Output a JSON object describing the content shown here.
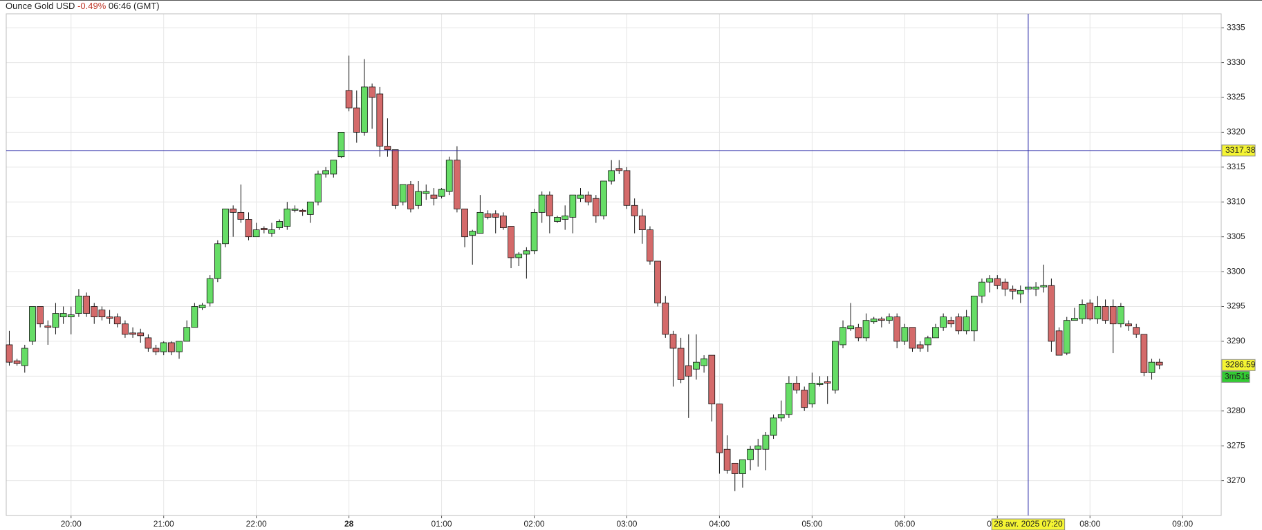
{
  "chart_data": {
    "type": "candlestick",
    "title": "Ounce Gold USD",
    "change": "-0.49%",
    "time": "06:46 (GMT)",
    "x": [
      "19:20",
      "19:25",
      "19:30",
      "19:35",
      "19:40",
      "19:45",
      "19:50",
      "19:55",
      "20:00",
      "20:05",
      "20:10",
      "20:15",
      "20:20",
      "20:25",
      "20:30",
      "20:35",
      "20:40",
      "20:45",
      "20:50",
      "20:55",
      "21:00",
      "21:05",
      "21:10",
      "21:15",
      "21:20",
      "21:25",
      "21:30",
      "21:35",
      "21:40",
      "21:45",
      "21:50",
      "21:55",
      "22:00",
      "22:05",
      "22:10",
      "22:15",
      "22:20",
      "22:25",
      "22:30",
      "22:35",
      "22:40",
      "22:45",
      "22:50",
      "22:55",
      "00:00",
      "00:05",
      "00:10",
      "00:15",
      "00:20",
      "00:25",
      "00:30",
      "00:35",
      "00:40",
      "00:45",
      "00:50",
      "00:55",
      "01:00",
      "01:05",
      "01:10",
      "01:15",
      "01:20",
      "01:25",
      "01:30",
      "01:35",
      "01:40",
      "01:45",
      "01:50",
      "01:55",
      "02:00",
      "02:05",
      "02:10",
      "02:15",
      "02:20",
      "02:25",
      "02:30",
      "02:35",
      "02:40",
      "02:45",
      "02:50",
      "02:55",
      "03:00",
      "03:05",
      "03:10",
      "03:15",
      "03:20",
      "03:25",
      "03:30",
      "03:35",
      "03:40",
      "03:45",
      "03:50",
      "03:55",
      "04:00",
      "04:05",
      "04:10",
      "04:15",
      "04:20",
      "04:25",
      "04:30",
      "04:35",
      "04:40",
      "04:45",
      "04:50",
      "04:55",
      "05:00",
      "05:05",
      "05:10",
      "05:15",
      "05:20",
      "05:25",
      "05:30",
      "05:35",
      "05:40",
      "05:45",
      "05:50",
      "05:55",
      "06:00",
      "06:05",
      "06:10",
      "06:15",
      "06:20",
      "06:25",
      "06:30",
      "06:35",
      "06:40",
      "06:45",
      "06:50",
      "06:55",
      "07:00",
      "07:05",
      "07:10",
      "07:15",
      "07:20",
      "07:25",
      "07:30",
      "07:35",
      "07:40",
      "07:45",
      "07:50",
      "07:55",
      "08:00",
      "08:05",
      "08:10",
      "08:15",
      "08:20",
      "08:25",
      "08:30",
      "08:35",
      "08:40",
      "08:45"
    ],
    "open": [
      3289.5,
      3287.2,
      3286.5,
      3290,
      3295,
      3292.2,
      3292,
      3293.5,
      3293.5,
      3294,
      3296.5,
      3295,
      3294.5,
      3293.5,
      3293.5,
      3292.5,
      3291.2,
      3291.2,
      3290.5,
      3289,
      3288.5,
      3289.8,
      3288.5,
      3290,
      3292,
      3294.8,
      3295.5,
      3299,
      3304,
      3309,
      3308.5,
      3307.5,
      3305,
      3306.2,
      3305.5,
      3306.3,
      3306.5,
      3308.8,
      3308.8,
      3308.2,
      3310,
      3314,
      3314,
      3316.5,
      3326,
      3323.5,
      3320,
      3326.5,
      3325.5,
      3318,
      3317.5,
      3310,
      3312.5,
      3309.5,
      3311.2,
      3311,
      3310.8,
      3311.5,
      3316,
      3309,
      3305.2,
      3305.5,
      3308.3,
      3308.3,
      3308,
      3306.5,
      3302,
      3302.5,
      3303,
      3308.5,
      3311,
      3307.2,
      3307.5,
      3307.8,
      3310.5,
      3311,
      3310.5,
      3308,
      3313,
      3314.8,
      3314.5,
      3309.5,
      3308,
      3306,
      3301.5,
      3295.5,
      3291,
      3289,
      3286.5,
      3286,
      3286.5,
      3288,
      3281,
      3274.5,
      3272.5,
      3271,
      3273,
      3274.5,
      3274.5,
      3276.5,
      3279,
      3279.5,
      3284,
      3283,
      3281,
      3283.8,
      3284.2,
      3283,
      3289.5,
      3291.8,
      3292,
      3290.5,
      3292.8,
      3293.2,
      3293,
      3293.5,
      3290,
      3292,
      3289.5,
      3289.5,
      3290.5,
      3292,
      3293,
      3293.5,
      3291.5,
      3291.5,
      3296.5,
      3298.5,
      3299,
      3298.5,
      3297.5,
      3296.8,
      3297.5,
      3297.5,
      3297.8,
      3298,
      3291.5,
      3288.3,
      3293,
      3293.2,
      3295.5,
      3293.2,
      3295,
      3295,
      3292.5,
      3292.5,
      3292,
      3291,
      3285.5,
      3287
    ],
    "high": [
      3291.5,
      3287.5,
      3289.5,
      3295,
      3295,
      3293,
      3295.5,
      3295,
      3295,
      3297.5,
      3297,
      3295.5,
      3295,
      3294.5,
      3294,
      3293,
      3292,
      3291.8,
      3291,
      3289.5,
      3290,
      3290,
      3290,
      3293,
      3295.5,
      3295.5,
      3299.5,
      3304.5,
      3309,
      3309.5,
      3312.5,
      3308.5,
      3307,
      3306.5,
      3307,
      3307.5,
      3310,
      3309.5,
      3309,
      3310,
      3314.5,
      3315,
      3316,
      3320,
      3331,
      3326,
      3330.5,
      3327,
      3326.5,
      3322,
      3317.5,
      3312.5,
      3313,
      3313,
      3312.5,
      3312,
      3312,
      3316.5,
      3318,
      3309,
      3306,
      3311,
      3308.8,
      3308.8,
      3308.5,
      3306.5,
      3302.8,
      3303.5,
      3309,
      3311.5,
      3311.5,
      3308,
      3309.5,
      3311,
      3312,
      3311.5,
      3311,
      3313,
      3316,
      3316,
      3315,
      3310.5,
      3309,
      3306.5,
      3301.5,
      3296.5,
      3291.5,
      3290.5,
      3291,
      3291,
      3288,
      3288,
      3281,
      3276.5,
      3272.5,
      3273,
      3275,
      3276,
      3277,
      3279.5,
      3281.5,
      3285,
      3285,
      3283.5,
      3285.5,
      3285,
      3285,
      3290,
      3293,
      3295.5,
      3292.5,
      3294,
      3293.5,
      3293.5,
      3294,
      3294,
      3292.5,
      3292,
      3290,
      3290.8,
      3292.5,
      3294,
      3293.5,
      3294,
      3294.5,
      3296.5,
      3299,
      3299.5,
      3299.5,
      3299,
      3298,
      3298,
      3298.5,
      3298.5,
      3301,
      3299,
      3292,
      3293.5,
      3294.8,
      3296,
      3296,
      3296.5,
      3296,
      3296,
      3295.5,
      3293,
      3292.5,
      3291,
      3287.5,
      3287.5
    ],
    "low": [
      3286.5,
      3286.5,
      3285.5,
      3289.5,
      3292,
      3289.5,
      3291,
      3292.5,
      3291,
      3293.5,
      3293.5,
      3292.5,
      3293,
      3292.5,
      3292,
      3290.5,
      3290.5,
      3289.8,
      3288.5,
      3288,
      3288,
      3288,
      3287.5,
      3290,
      3292,
      3294.5,
      3295,
      3298.5,
      3303.5,
      3305,
      3307,
      3304.5,
      3305,
      3305.5,
      3305,
      3306,
      3306,
      3308.5,
      3308,
      3307,
      3309.5,
      3313.5,
      3313.5,
      3316.3,
      3323,
      3318.5,
      3319.5,
      3320.5,
      3316.5,
      3316.5,
      3309,
      3309.5,
      3308.5,
      3309,
      3310.3,
      3309.5,
      3310.5,
      3311,
      3308.5,
      3303.5,
      3301,
      3305.5,
      3307.5,
      3305.5,
      3306,
      3300.5,
      3300.8,
      3299,
      3302.5,
      3307,
      3305.5,
      3307,
      3306,
      3305.5,
      3310,
      3309.5,
      3307,
      3307.5,
      3312.5,
      3314,
      3309,
      3305.5,
      3304,
      3301,
      3295,
      3290.5,
      3283.5,
      3284,
      3279,
      3284.5,
      3285.5,
      3278.5,
      3271,
      3271,
      3268.5,
      3269,
      3271.5,
      3272,
      3271.5,
      3276,
      3278.5,
      3279,
      3282.5,
      3280,
      3280.5,
      3283.5,
      3281,
      3282.5,
      3289,
      3291.5,
      3290,
      3290,
      3292.5,
      3292,
      3292.5,
      3289,
      3289.5,
      3288.5,
      3288.5,
      3288.5,
      3290.5,
      3291.5,
      3292,
      3291,
      3291,
      3290,
      3295.5,
      3297,
      3297.5,
      3296.5,
      3296,
      3295.5,
      3297,
      3296.5,
      3297,
      3288.5,
      3288,
      3288,
      3293,
      3292.5,
      3293,
      3292.5,
      3292.5,
      3288.3,
      3292,
      3291.5,
      3290.5,
      3285,
      3284.5,
      3286
    ],
    "close": [
      3287,
      3286.8,
      3289,
      3295,
      3292.5,
      3292,
      3294,
      3294,
      3293.8,
      3296.5,
      3294,
      3293.5,
      3293.5,
      3293.3,
      3292.5,
      3291,
      3291,
      3290.8,
      3289,
      3288.5,
      3289.8,
      3288.5,
      3290,
      3292,
      3295,
      3295.2,
      3299,
      3304,
      3309,
      3308.5,
      3307.5,
      3305,
      3306,
      3306,
      3306,
      3307.2,
      3309,
      3309,
      3308.6,
      3310,
      3314,
      3314.5,
      3316,
      3320,
      3323.5,
      3320,
      3326.5,
      3325,
      3318,
      3317.5,
      3309.5,
      3312.5,
      3309,
      3311.5,
      3311.5,
      3310.5,
      3311.8,
      3316,
      3309,
      3305,
      3305.8,
      3308.5,
      3307.8,
      3307.8,
      3306.3,
      3302,
      3302.5,
      3303,
      3308.5,
      3311,
      3308,
      3307.8,
      3308,
      3311,
      3311,
      3310,
      3308,
      3313,
      3314.5,
      3314.5,
      3309.5,
      3308,
      3306,
      3301.5,
      3295.5,
      3291,
      3289,
      3284.5,
      3285,
      3287,
      3287.5,
      3281,
      3274,
      3271.5,
      3271,
      3273,
      3274.5,
      3275,
      3276.5,
      3279,
      3279.5,
      3284,
      3283,
      3280.5,
      3284,
      3284,
      3284,
      3290,
      3292,
      3292.2,
      3290.5,
      3293,
      3293.2,
      3293,
      3293.5,
      3290,
      3292,
      3289,
      3289,
      3290.5,
      3292,
      3293.5,
      3292.5,
      3291.5,
      3293.5,
      3296.5,
      3298.5,
      3299,
      3298,
      3297.5,
      3297.2,
      3297.3,
      3297.8,
      3297.8,
      3298,
      3290,
      3288,
      3293,
      3293.3,
      3295.3,
      3293.2,
      3295,
      3293,
      3292.5,
      3295,
      3292.2,
      3291,
      3285.5,
      3287,
      3286.6
    ],
    "up_color": "#66dd66",
    "down_color": "#d46a6a",
    "xlim": [
      "19:18",
      "09:25"
    ],
    "xticks": [
      "20:00",
      "21:00",
      "22:00",
      {
        "value": "00:00",
        "label": "28"
      },
      "01:00",
      "02:00",
      "03:00",
      "04:00",
      "05:00",
      "06:00",
      "07:00",
      "08:00",
      "09:00"
    ],
    "ylim": [
      3265,
      3337
    ],
    "yticks": [
      3270,
      3275,
      3280,
      3285,
      3290,
      3295,
      3300,
      3305,
      3310,
      3315,
      3320,
      3325,
      3330,
      3335
    ],
    "grid": true,
    "crosshair": {
      "value": 3317.38,
      "x": "07:20",
      "label": "28 avr. 2025 07:20",
      "color": "#2b2ba8"
    },
    "last_price": 3286.59,
    "countdown": "3m51s"
  }
}
